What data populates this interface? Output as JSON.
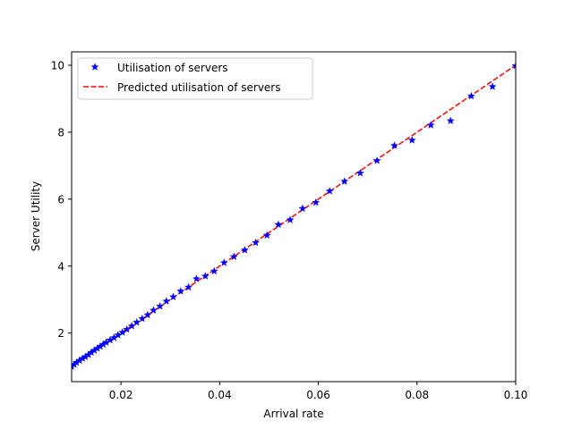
{
  "chart_data": {
    "type": "scatter",
    "xlabel": "Arrival rate",
    "ylabel": "Server Utility",
    "xlim": [
      0.01,
      0.1
    ],
    "ylim": [
      0.55,
      10.4
    ],
    "xticks": [
      0.02,
      0.04,
      0.06,
      0.08,
      0.1
    ],
    "xtick_labels": [
      "0.02",
      "0.04",
      "0.06",
      "0.08",
      "0.10"
    ],
    "yticks": [
      2,
      4,
      6,
      8,
      10
    ],
    "ytick_labels": [
      "2",
      "4",
      "6",
      "8",
      "10"
    ],
    "grid": false,
    "legend_placement": "upper-left",
    "series": [
      {
        "name": "Utilisation of servers",
        "style": "markers",
        "marker": "star",
        "color": "#0000ff",
        "points": [
          [
            0.01,
            1.0
          ],
          [
            0.0105,
            1.06
          ],
          [
            0.011,
            1.12
          ],
          [
            0.0116,
            1.18
          ],
          [
            0.0122,
            1.24
          ],
          [
            0.0128,
            1.29
          ],
          [
            0.0134,
            1.35
          ],
          [
            0.014,
            1.42
          ],
          [
            0.0146,
            1.48
          ],
          [
            0.0152,
            1.54
          ],
          [
            0.0158,
            1.6
          ],
          [
            0.0164,
            1.66
          ],
          [
            0.017,
            1.72
          ],
          [
            0.0178,
            1.79
          ],
          [
            0.0186,
            1.86
          ],
          [
            0.0194,
            1.94
          ],
          [
            0.0203,
            2.02
          ],
          [
            0.0212,
            2.11
          ],
          [
            0.0222,
            2.21
          ],
          [
            0.0232,
            2.32
          ],
          [
            0.0243,
            2.43
          ],
          [
            0.0254,
            2.54
          ],
          [
            0.0266,
            2.68
          ],
          [
            0.0279,
            2.8
          ],
          [
            0.0292,
            2.95
          ],
          [
            0.0306,
            3.08
          ],
          [
            0.0321,
            3.25
          ],
          [
            0.0337,
            3.37
          ],
          [
            0.0353,
            3.62
          ],
          [
            0.0371,
            3.7
          ],
          [
            0.0389,
            3.85
          ],
          [
            0.0409,
            4.1
          ],
          [
            0.0429,
            4.28
          ],
          [
            0.0451,
            4.48
          ],
          [
            0.0473,
            4.7
          ],
          [
            0.0496,
            4.92
          ],
          [
            0.0519,
            5.24
          ],
          [
            0.0543,
            5.38
          ],
          [
            0.0568,
            5.72
          ],
          [
            0.0595,
            5.9
          ],
          [
            0.0623,
            6.24
          ],
          [
            0.0653,
            6.53
          ],
          [
            0.0685,
            6.78
          ],
          [
            0.0719,
            7.15
          ],
          [
            0.0754,
            7.6
          ],
          [
            0.079,
            7.76
          ],
          [
            0.0828,
            8.21
          ],
          [
            0.0868,
            8.34
          ],
          [
            0.091,
            9.08
          ],
          [
            0.0953,
            9.36
          ],
          [
            0.1,
            9.98
          ]
        ]
      },
      {
        "name": "Predicted utilisation of servers",
        "style": "dashed-line",
        "color": "#ff0000",
        "points": [
          [
            0.01,
            1.0
          ],
          [
            0.1,
            10.0
          ]
        ]
      }
    ]
  }
}
